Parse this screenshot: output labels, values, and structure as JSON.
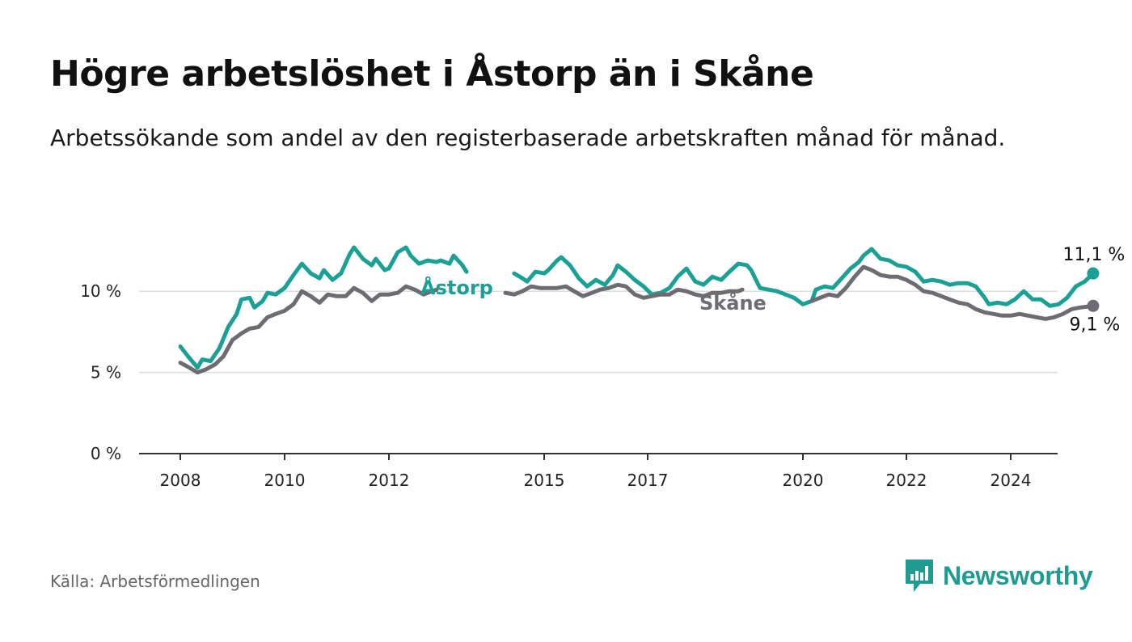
{
  "title": "Högre arbetslöshet i Åstorp än i Skåne",
  "subtitle": "Arbetssökande som andel av den registerbaserade arbetskraften månad för månad.",
  "source": "Källa: Arbetsförmedlingen",
  "brand": "Newsworthy",
  "colors": {
    "astorp": "#1aa094",
    "skane": "#6e6c72",
    "grid": "#dddddd",
    "axis": "#333333"
  },
  "chart_data": {
    "type": "line",
    "title": "Högre arbetslöshet i Åstorp än i Skåne",
    "xlabel": "",
    "ylabel": "",
    "ylim": [
      0,
      13
    ],
    "xlim": [
      2007.85,
      2024.9
    ],
    "y_ticks": [
      0,
      5,
      10
    ],
    "y_tick_labels": [
      "0 %",
      "5 %",
      "10 %"
    ],
    "x_ticks": [
      2008,
      2010,
      2012,
      2015,
      2017,
      2020,
      2022,
      2024
    ],
    "x_tick_labels": [
      "2008",
      "2010",
      "2012",
      "2015",
      "2017",
      "2020",
      "2022",
      "2024"
    ],
    "series": [
      {
        "name": "Åstorp",
        "color": "#1aa094",
        "end_label": "11,1 %",
        "points": [
          [
            2008.0,
            6.6
          ],
          [
            2008.17,
            5.9
          ],
          [
            2008.33,
            5.3
          ],
          [
            2008.42,
            5.8
          ],
          [
            2008.58,
            5.7
          ],
          [
            2008.75,
            6.5
          ],
          [
            2008.92,
            7.8
          ],
          [
            2009.08,
            8.6
          ],
          [
            2009.17,
            9.5
          ],
          [
            2009.33,
            9.6
          ],
          [
            2009.42,
            9.0
          ],
          [
            2009.58,
            9.4
          ],
          [
            2009.67,
            9.9
          ],
          [
            2009.83,
            9.8
          ],
          [
            2010.0,
            10.2
          ],
          [
            2010.17,
            11.0
          ],
          [
            2010.33,
            11.7
          ],
          [
            2010.5,
            11.1
          ],
          [
            2010.67,
            10.8
          ],
          [
            2010.75,
            11.3
          ],
          [
            2010.92,
            10.7
          ],
          [
            2011.08,
            11.1
          ],
          [
            2011.25,
            12.3
          ],
          [
            2011.33,
            12.7
          ],
          [
            2011.5,
            12.0
          ],
          [
            2011.67,
            11.6
          ],
          [
            2011.75,
            12.0
          ],
          [
            2011.92,
            11.3
          ],
          [
            2012.0,
            11.4
          ],
          [
            2012.17,
            12.4
          ],
          [
            2012.33,
            12.7
          ],
          [
            2012.42,
            12.2
          ],
          [
            2012.58,
            11.7
          ],
          [
            2012.75,
            11.9
          ],
          [
            2012.92,
            11.8
          ],
          [
            2013.0,
            11.9
          ],
          [
            2013.17,
            11.7
          ],
          [
            2013.25,
            12.2
          ],
          [
            2013.42,
            11.6
          ],
          [
            2013.5,
            11.2
          ],
          [
            2014.42,
            11.1
          ],
          [
            2014.58,
            10.8
          ],
          [
            2014.67,
            10.6
          ],
          [
            2014.83,
            11.2
          ],
          [
            2015.0,
            11.1
          ],
          [
            2015.08,
            11.3
          ],
          [
            2015.25,
            11.9
          ],
          [
            2015.33,
            12.1
          ],
          [
            2015.5,
            11.6
          ],
          [
            2015.67,
            10.8
          ],
          [
            2015.83,
            10.3
          ],
          [
            2016.0,
            10.7
          ],
          [
            2016.17,
            10.4
          ],
          [
            2016.33,
            11.0
          ],
          [
            2016.42,
            11.6
          ],
          [
            2016.58,
            11.2
          ],
          [
            2016.75,
            10.7
          ],
          [
            2016.92,
            10.3
          ],
          [
            2017.08,
            9.8
          ],
          [
            2017.25,
            9.9
          ],
          [
            2017.42,
            10.2
          ],
          [
            2017.58,
            10.9
          ],
          [
            2017.75,
            11.4
          ],
          [
            2017.92,
            10.6
          ],
          [
            2018.08,
            10.4
          ],
          [
            2018.25,
            10.9
          ],
          [
            2018.42,
            10.7
          ],
          [
            2018.58,
            11.2
          ],
          [
            2018.75,
            11.7
          ],
          [
            2018.92,
            11.6
          ],
          [
            2019.0,
            11.3
          ],
          [
            2019.17,
            10.2
          ],
          [
            2019.5,
            10.0
          ],
          [
            2019.83,
            9.6
          ],
          [
            2020.0,
            9.2
          ],
          [
            2020.17,
            9.4
          ],
          [
            2020.25,
            10.1
          ],
          [
            2020.42,
            10.3
          ],
          [
            2020.58,
            10.2
          ],
          [
            2020.75,
            10.8
          ],
          [
            2020.92,
            11.4
          ],
          [
            2021.08,
            11.8
          ],
          [
            2021.17,
            12.2
          ],
          [
            2021.33,
            12.6
          ],
          [
            2021.5,
            12.0
          ],
          [
            2021.67,
            11.9
          ],
          [
            2021.83,
            11.6
          ],
          [
            2022.0,
            11.5
          ],
          [
            2022.17,
            11.2
          ],
          [
            2022.33,
            10.6
          ],
          [
            2022.5,
            10.7
          ],
          [
            2022.67,
            10.6
          ],
          [
            2022.83,
            10.4
          ],
          [
            2023.0,
            10.5
          ],
          [
            2023.17,
            10.5
          ],
          [
            2023.33,
            10.3
          ],
          [
            2023.5,
            9.6
          ],
          [
            2023.58,
            9.2
          ],
          [
            2023.75,
            9.3
          ],
          [
            2023.92,
            9.2
          ],
          [
            2024.08,
            9.5
          ],
          [
            2024.25,
            10.0
          ],
          [
            2024.42,
            9.5
          ],
          [
            2024.58,
            9.5
          ],
          [
            2024.75,
            9.1
          ],
          [
            2024.92,
            9.2
          ],
          [
            2025.08,
            9.6
          ],
          [
            2025.25,
            10.3
          ],
          [
            2025.42,
            10.6
          ],
          [
            2025.58,
            11.1
          ]
        ]
      },
      {
        "name": "Skåne",
        "color": "#6e6c72",
        "end_label": "9,1 %",
        "points": [
          [
            2008.0,
            5.6
          ],
          [
            2008.17,
            5.3
          ],
          [
            2008.33,
            5.0
          ],
          [
            2008.5,
            5.2
          ],
          [
            2008.67,
            5.5
          ],
          [
            2008.83,
            6.0
          ],
          [
            2009.0,
            7.0
          ],
          [
            2009.17,
            7.4
          ],
          [
            2009.33,
            7.7
          ],
          [
            2009.5,
            7.8
          ],
          [
            2009.67,
            8.4
          ],
          [
            2009.83,
            8.6
          ],
          [
            2010.0,
            8.8
          ],
          [
            2010.17,
            9.2
          ],
          [
            2010.33,
            10.0
          ],
          [
            2010.5,
            9.7
          ],
          [
            2010.67,
            9.3
          ],
          [
            2010.83,
            9.8
          ],
          [
            2011.0,
            9.7
          ],
          [
            2011.17,
            9.7
          ],
          [
            2011.33,
            10.2
          ],
          [
            2011.5,
            9.9
          ],
          [
            2011.67,
            9.4
          ],
          [
            2011.83,
            9.8
          ],
          [
            2012.0,
            9.8
          ],
          [
            2012.17,
            9.9
          ],
          [
            2012.33,
            10.3
          ],
          [
            2012.5,
            10.1
          ],
          [
            2012.67,
            9.8
          ],
          [
            2012.83,
            10.0
          ],
          [
            2012.92,
            10.1
          ],
          [
            2014.25,
            9.9
          ],
          [
            2014.42,
            9.8
          ],
          [
            2014.58,
            10.0
          ],
          [
            2014.75,
            10.3
          ],
          [
            2014.92,
            10.2
          ],
          [
            2015.08,
            10.2
          ],
          [
            2015.25,
            10.2
          ],
          [
            2015.42,
            10.3
          ],
          [
            2015.58,
            10.0
          ],
          [
            2015.75,
            9.7
          ],
          [
            2015.92,
            9.9
          ],
          [
            2016.08,
            10.1
          ],
          [
            2016.25,
            10.2
          ],
          [
            2016.42,
            10.4
          ],
          [
            2016.58,
            10.3
          ],
          [
            2016.75,
            9.8
          ],
          [
            2016.92,
            9.6
          ],
          [
            2017.08,
            9.7
          ],
          [
            2017.25,
            9.8
          ],
          [
            2017.42,
            9.8
          ],
          [
            2017.58,
            10.1
          ],
          [
            2017.75,
            10.0
          ],
          [
            2017.92,
            9.8
          ],
          [
            2018.08,
            9.7
          ],
          [
            2018.25,
            9.9
          ],
          [
            2018.42,
            9.9
          ],
          [
            2018.58,
            10.0
          ],
          [
            2018.75,
            10.0
          ],
          [
            2018.83,
            10.1
          ],
          [
            2020.17,
            9.4
          ],
          [
            2020.33,
            9.6
          ],
          [
            2020.5,
            9.8
          ],
          [
            2020.67,
            9.7
          ],
          [
            2020.83,
            10.2
          ],
          [
            2021.0,
            10.9
          ],
          [
            2021.17,
            11.5
          ],
          [
            2021.33,
            11.3
          ],
          [
            2021.5,
            11.0
          ],
          [
            2021.67,
            10.9
          ],
          [
            2021.83,
            10.9
          ],
          [
            2022.0,
            10.7
          ],
          [
            2022.17,
            10.4
          ],
          [
            2022.33,
            10.0
          ],
          [
            2022.5,
            9.9
          ],
          [
            2022.67,
            9.7
          ],
          [
            2022.83,
            9.5
          ],
          [
            2023.0,
            9.3
          ],
          [
            2023.17,
            9.2
          ],
          [
            2023.33,
            8.9
          ],
          [
            2023.5,
            8.7
          ],
          [
            2023.67,
            8.6
          ],
          [
            2023.83,
            8.5
          ],
          [
            2024.0,
            8.5
          ],
          [
            2024.17,
            8.6
          ],
          [
            2024.33,
            8.5
          ],
          [
            2024.5,
            8.4
          ],
          [
            2024.67,
            8.3
          ],
          [
            2024.83,
            8.4
          ],
          [
            2025.0,
            8.6
          ],
          [
            2025.17,
            8.9
          ],
          [
            2025.33,
            9.0
          ],
          [
            2025.58,
            9.1
          ]
        ]
      }
    ],
    "annotations": [
      {
        "text": "Åstorp",
        "series": "Åstorp"
      },
      {
        "text": "Skåne",
        "series": "Skåne"
      }
    ]
  }
}
